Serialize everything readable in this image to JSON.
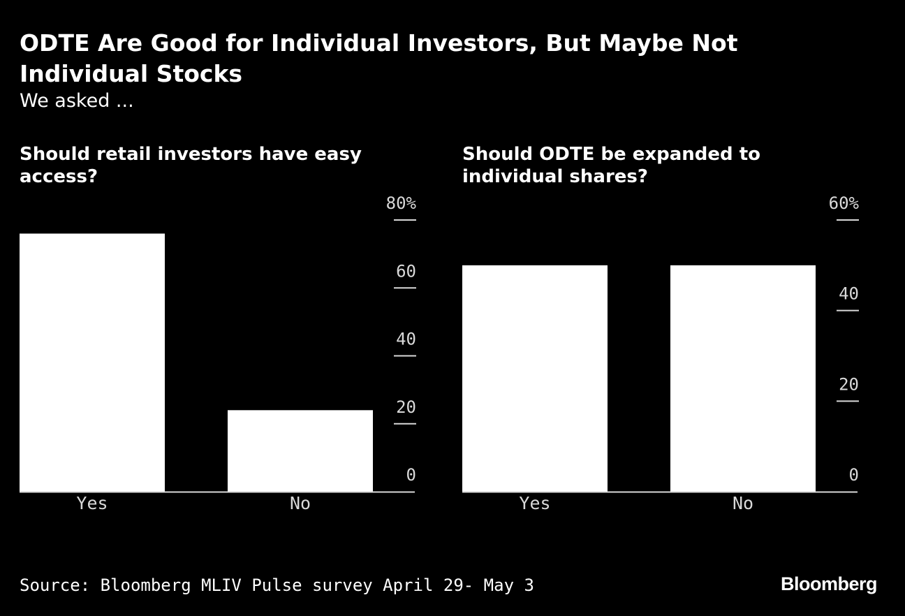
{
  "header": {
    "title": "ODTE Are Good for Individual Investors, But Maybe Not Individual Stocks",
    "subtitle": "We asked ..."
  },
  "footer": {
    "source": "Source: Bloomberg MLIV Pulse survey April 29- May 3",
    "brand": "Bloomberg"
  },
  "chart_data": [
    {
      "type": "bar",
      "title": "Should retail investors have easy access?",
      "categories": [
        "Yes",
        "No"
      ],
      "values": [
        76,
        24
      ],
      "ylim": [
        0,
        80
      ],
      "yticks": [
        0,
        20,
        40,
        60,
        80
      ],
      "ytick_labels": [
        "0",
        "20",
        "40",
        "60",
        "80%"
      ],
      "y_axis_side": "right",
      "grid": false,
      "legend": "none"
    },
    {
      "type": "bar",
      "title": "Should ODTE be expanded to individual shares?",
      "categories": [
        "Yes",
        "No"
      ],
      "values": [
        50,
        50
      ],
      "ylim": [
        0,
        60
      ],
      "yticks": [
        0,
        20,
        40,
        60
      ],
      "ytick_labels": [
        "0",
        "20",
        "40",
        "60%"
      ],
      "y_axis_side": "right",
      "grid": false,
      "legend": "none"
    }
  ],
  "colors": {
    "background": "#000000",
    "bar": "#ffffff",
    "text": "#ffffff",
    "tick": "#d9d9d9"
  }
}
